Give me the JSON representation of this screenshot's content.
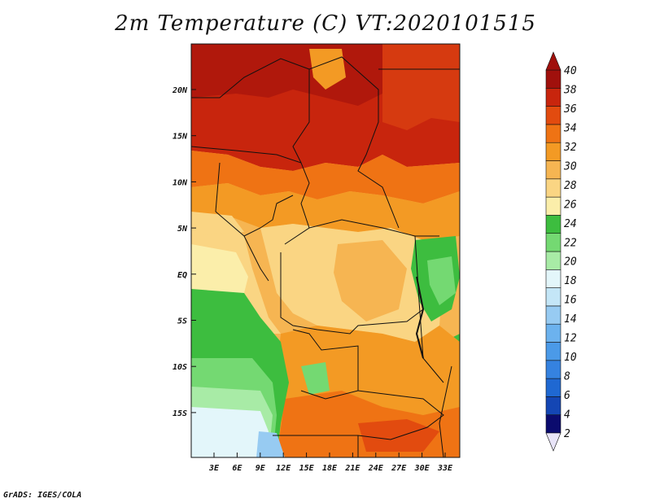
{
  "title": "2m Temperature (C) VT:2020101515",
  "credit": "GrADS: IGES/COLA",
  "map": {
    "region": "Central Africa",
    "variable": "2m Temperature (C)",
    "lon_labels": [
      "3E",
      "6E",
      "9E",
      "12E",
      "15E",
      "18E",
      "21E",
      "24E",
      "27E",
      "30E",
      "33E"
    ],
    "lat_labels": [
      "20N",
      "15N",
      "10N",
      "5N",
      "EQ",
      "5S",
      "10S",
      "15S"
    ]
  },
  "colorbar": {
    "levels": [
      "2",
      "4",
      "6",
      "8",
      "10",
      "12",
      "14",
      "16",
      "18",
      "20",
      "22",
      "24",
      "26",
      "28",
      "30",
      "32",
      "34",
      "36",
      "38",
      "40"
    ],
    "colors": [
      "#0b0b6e",
      "#1446b4",
      "#1f68d2",
      "#3582e0",
      "#4b9ae8",
      "#6cb2ee",
      "#97cbf2",
      "#c4e6f7",
      "#e3f6fa",
      "#a8eba6",
      "#74d972",
      "#3dbd3f",
      "#fbeeaa",
      "#fad583",
      "#f6b552",
      "#f39a24",
      "#ef7314",
      "#e24b0f",
      "#c8250d",
      "#a0100c"
    ],
    "under_color": "#e8e4f8",
    "over_color": "#a0100c"
  }
}
